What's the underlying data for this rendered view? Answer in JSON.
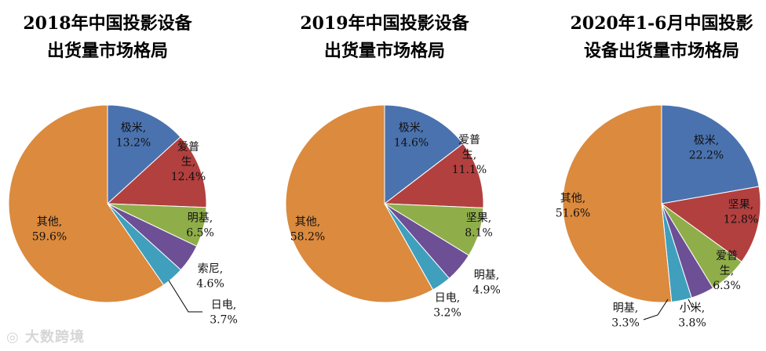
{
  "chart_data": [
    {
      "type": "pie",
      "title": [
        "2018年中国投影设备",
        "出货量市场格局"
      ],
      "slices": [
        {
          "name": "极米",
          "label_lines": [
            "极米,",
            "13.2%"
          ],
          "value": 13.2,
          "color": "#4a72ae"
        },
        {
          "name": "爱普生",
          "label_lines": [
            "爱普",
            "生,",
            "12.4%"
          ],
          "value": 12.4,
          "color": "#b2403f"
        },
        {
          "name": "明基",
          "label_lines": [
            "明基,",
            "6.5%"
          ],
          "value": 6.5,
          "color": "#8fae4a"
        },
        {
          "name": "索尼",
          "label_lines": [
            "索尼,",
            "4.6%"
          ],
          "value": 4.6,
          "color": "#6d4f96"
        },
        {
          "name": "日电",
          "label_lines": [
            "日电,",
            "3.7%"
          ],
          "value": 3.7,
          "color": "#3f9fbd"
        },
        {
          "name": "其他",
          "label_lines": [
            "其他,",
            "59.6%"
          ],
          "value": 59.6,
          "color": "#db8a3e"
        }
      ]
    },
    {
      "type": "pie",
      "title": [
        "2019年中国投影设备",
        "出货量市场格局"
      ],
      "slices": [
        {
          "name": "极米",
          "label_lines": [
            "极米,",
            "14.6%"
          ],
          "value": 14.6,
          "color": "#4a72ae"
        },
        {
          "name": "爱普生",
          "label_lines": [
            "爱普",
            "生,",
            "11.1%"
          ],
          "value": 11.1,
          "color": "#b2403f"
        },
        {
          "name": "坚果",
          "label_lines": [
            "坚果,",
            "8.1%"
          ],
          "value": 8.1,
          "color": "#8fae4a"
        },
        {
          "name": "明基",
          "label_lines": [
            "明基,",
            "4.9%"
          ],
          "value": 4.9,
          "color": "#6d4f96"
        },
        {
          "name": "日电",
          "label_lines": [
            "日电,",
            "3.2%"
          ],
          "value": 3.2,
          "color": "#3f9fbd"
        },
        {
          "name": "其他",
          "label_lines": [
            "其他,",
            "58.2%"
          ],
          "value": 58.2,
          "color": "#db8a3e"
        }
      ]
    },
    {
      "type": "pie",
      "title": [
        "2020年1-6月中国投影",
        "设备出货量市场格局"
      ],
      "slices": [
        {
          "name": "极米",
          "label_lines": [
            "极米,",
            "22.2%"
          ],
          "value": 22.2,
          "color": "#4a72ae"
        },
        {
          "name": "坚果",
          "label_lines": [
            "坚果,",
            "12.8%"
          ],
          "value": 12.8,
          "color": "#b2403f"
        },
        {
          "name": "爱普生",
          "label_lines": [
            "爱普",
            "生,",
            "6.3%"
          ],
          "value": 6.3,
          "color": "#8fae4a"
        },
        {
          "name": "小米",
          "label_lines": [
            "小米,",
            "3.8%"
          ],
          "value": 3.8,
          "color": "#6d4f96"
        },
        {
          "name": "明基",
          "label_lines": [
            "明基,",
            "3.3%"
          ],
          "value": 3.3,
          "color": "#3f9fbd"
        },
        {
          "name": "其他",
          "label_lines": [
            "其他,",
            "51.6%"
          ],
          "value": 51.6,
          "color": "#db8a3e"
        }
      ]
    }
  ],
  "watermark": "大数跨境"
}
